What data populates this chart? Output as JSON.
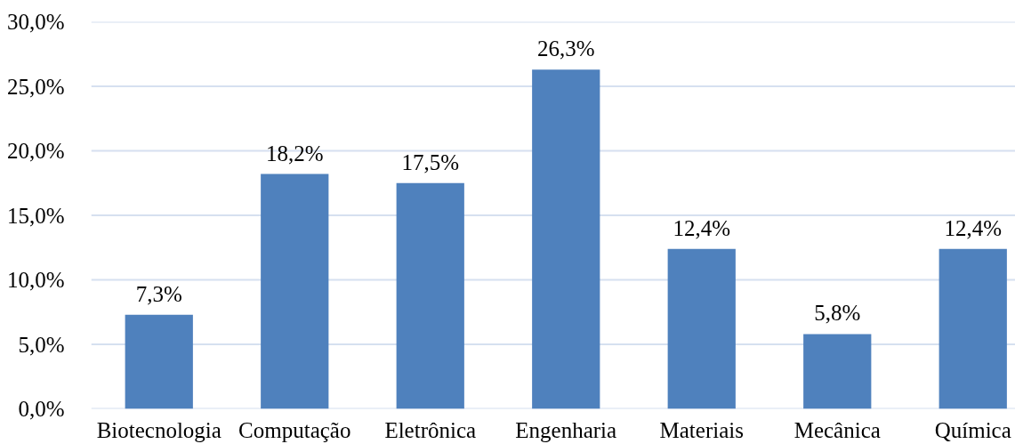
{
  "chart_data": {
    "type": "bar",
    "categories": [
      "Biotecnologia",
      "Computação",
      "Eletrônica",
      "Engenharia",
      "Materiais",
      "Mecânica",
      "Química"
    ],
    "values": [
      7.3,
      18.2,
      17.5,
      26.3,
      12.4,
      5.8,
      12.4
    ],
    "value_labels": [
      "7,3%",
      "18,2%",
      "17,5%",
      "26,3%",
      "12,4%",
      "5,8%",
      "12,4%"
    ],
    "color": "#4f81bd",
    "ylim": [
      0,
      30
    ],
    "yticks": [
      {
        "value": 0,
        "label": "0,0%"
      },
      {
        "value": 5,
        "label": "5,0%"
      },
      {
        "value": 10,
        "label": "10,0%"
      },
      {
        "value": 15,
        "label": "15,0%"
      },
      {
        "value": 20,
        "label": "20,0%"
      },
      {
        "value": 25,
        "label": "25,0%"
      },
      {
        "value": 30,
        "label": "30,0%"
      }
    ],
    "grid": "y"
  }
}
